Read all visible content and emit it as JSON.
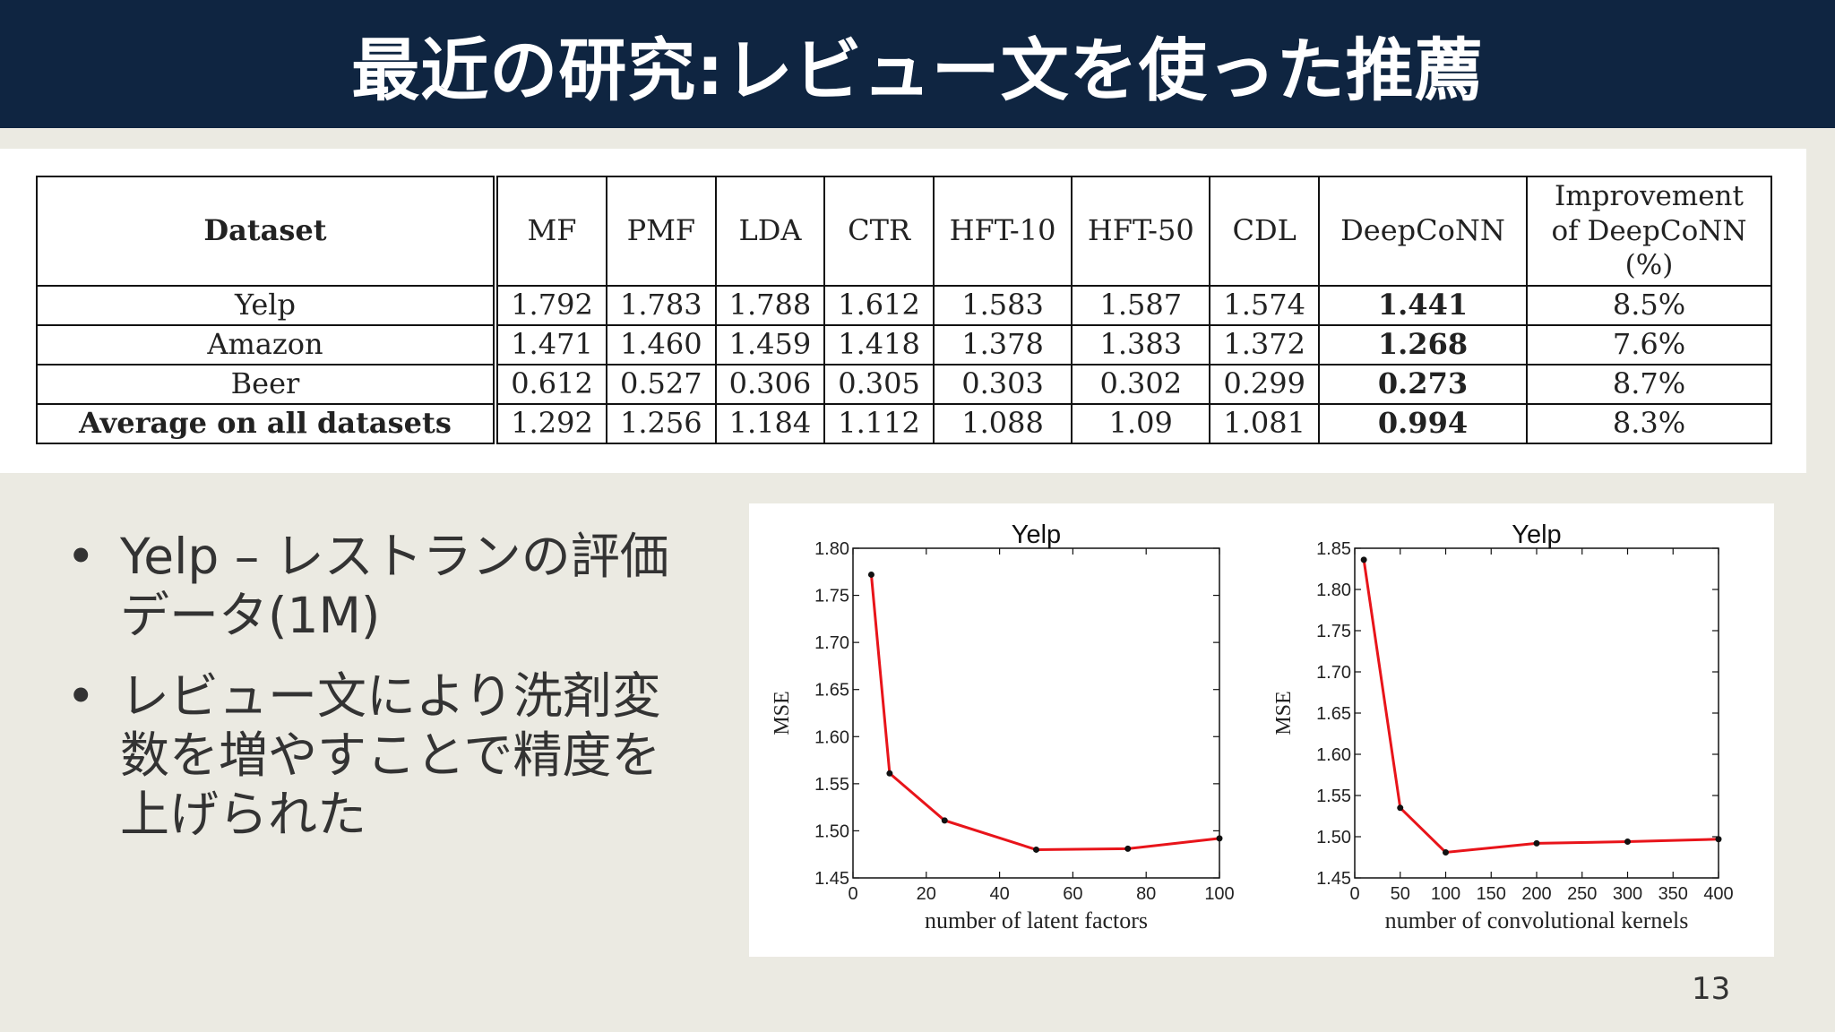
{
  "slide": {
    "title": "最近の研究:レビュー文を使った推薦",
    "page_number": "13"
  },
  "table": {
    "headers": [
      "Dataset",
      "MF",
      "PMF",
      "LDA",
      "CTR",
      "HFT-10",
      "HFT-50",
      "CDL",
      "DeepCoNN",
      "Improvement of DeepCoNN (%)"
    ],
    "improvement_header_lines": [
      "Improvement",
      "of DeepCoNN",
      "(%)"
    ],
    "rows": [
      {
        "dataset": "Yelp",
        "values": [
          "1.792",
          "1.783",
          "1.788",
          "1.612",
          "1.583",
          "1.587",
          "1.574",
          "1.441"
        ],
        "improvement": "8.5%"
      },
      {
        "dataset": "Amazon",
        "values": [
          "1.471",
          "1.460",
          "1.459",
          "1.418",
          "1.378",
          "1.383",
          "1.372",
          "1.268"
        ],
        "improvement": "7.6%"
      },
      {
        "dataset": "Beer",
        "values": [
          "0.612",
          "0.527",
          "0.306",
          "0.305",
          "0.303",
          "0.302",
          "0.299",
          "0.273"
        ],
        "improvement": "8.7%"
      },
      {
        "dataset": "Average on all datasets",
        "values": [
          "1.292",
          "1.256",
          "1.184",
          "1.112",
          "1.088",
          "1.09",
          "1.081",
          "0.994"
        ],
        "improvement": "8.3%"
      }
    ]
  },
  "bullets": [
    {
      "lines": [
        "Yelp – レストランの評価",
        "データ(1M)"
      ]
    },
    {
      "lines": [
        "レビュー文により洗剤変",
        "数を増やすことで精度を",
        "上げられた"
      ]
    }
  ],
  "chart_data": [
    {
      "type": "line",
      "title": "Yelp",
      "xlabel": "number of latent factors",
      "ylabel": "MSE",
      "xlim": [
        0,
        100
      ],
      "ylim": [
        1.45,
        1.8
      ],
      "xticks": [
        0,
        20,
        40,
        60,
        80,
        100
      ],
      "yticks": [
        1.45,
        1.5,
        1.55,
        1.6,
        1.65,
        1.7,
        1.75,
        1.8
      ],
      "x": [
        5,
        10,
        25,
        50,
        75,
        100
      ],
      "y": [
        1.772,
        1.561,
        1.511,
        1.48,
        1.481,
        1.492
      ],
      "color": "#e8141a"
    },
    {
      "type": "line",
      "title": "Yelp",
      "xlabel": "number of convolutional kernels",
      "ylabel": "MSE",
      "xlim": [
        0,
        400
      ],
      "ylim": [
        1.45,
        1.85
      ],
      "xticks": [
        0,
        50,
        100,
        150,
        200,
        250,
        300,
        350,
        400
      ],
      "yticks": [
        1.45,
        1.5,
        1.55,
        1.6,
        1.65,
        1.7,
        1.75,
        1.8,
        1.85
      ],
      "x": [
        10,
        50,
        100,
        200,
        300,
        400
      ],
      "y": [
        1.836,
        1.535,
        1.481,
        1.492,
        1.494,
        1.497
      ],
      "color": "#e8141a"
    }
  ]
}
